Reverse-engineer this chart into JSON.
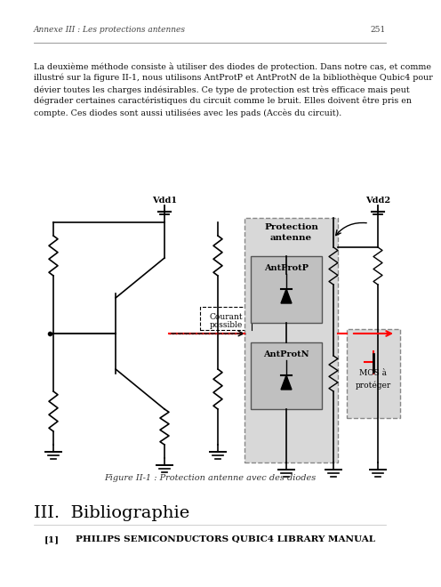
{
  "bg_color": "#ffffff",
  "header_text": "Annexe III : Les protections antennes",
  "page_number": "251",
  "body_line1": "La deuxième méthode consiste à utiliser des diodes de protection. Dans notre cas, et comme",
  "body_line2": "illustré sur la figure II-1, nous utilisons AntProtP et AntProtN de la bibliothèque Qubic4 pour",
  "body_line3": "dévier toutes les charges indésirables. Ce type de protection est très efficace mais peut",
  "body_line4": "dégrader certaines caractéristiques du circuit comme le bruit. Elles doivent être pris en",
  "body_line5": "compte. Ces diodes sont aussi utilisées avec les pads (Accès du circuit).",
  "figure_caption": "Figure II-1 : Protection antenne avec des diodes",
  "section_title": "III.  Bibliographie",
  "ref_label": "[1]",
  "ref_text": "PHILIPS SEMICONDUCTORS QUBIC4 LIBRARY MANUAL"
}
